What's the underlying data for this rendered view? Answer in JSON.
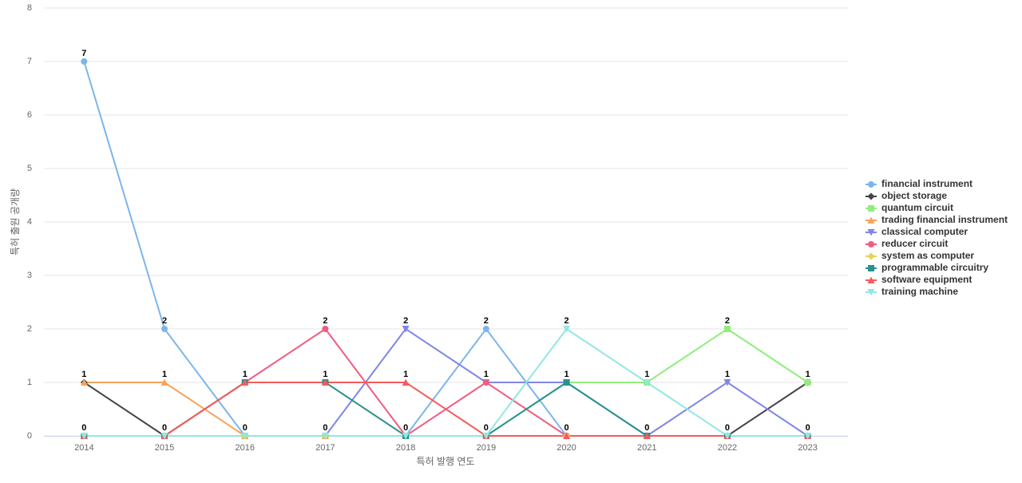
{
  "chart_data": {
    "type": "line",
    "x_label": "특허 발행 연도",
    "y_label": "특허 출원 공개량",
    "categories": [
      "2014",
      "2015",
      "2016",
      "2017",
      "2018",
      "2019",
      "2020",
      "2021",
      "2022",
      "2023"
    ],
    "ylim": [
      0,
      8
    ],
    "yticks": [
      0,
      1,
      2,
      3,
      4,
      5,
      6,
      7,
      8
    ],
    "grid": true,
    "legend": "right",
    "series": [
      {
        "name": "financial instrument",
        "color": "#7cb5ec",
        "marker": "circle",
        "values": [
          7,
          2,
          0,
          0,
          0,
          2,
          0,
          0,
          0,
          0
        ]
      },
      {
        "name": "object storage",
        "color": "#434348",
        "marker": "diamond",
        "values": [
          1,
          0,
          0,
          0,
          0,
          0,
          0,
          0,
          0,
          1
        ]
      },
      {
        "name": "quantum circuit",
        "color": "#90ed7d",
        "marker": "square",
        "values": [
          0,
          0,
          0,
          0,
          0,
          0,
          1,
          1,
          2,
          1
        ]
      },
      {
        "name": "trading financial instrument",
        "color": "#f7a35c",
        "marker": "triangle",
        "values": [
          1,
          1,
          0,
          0,
          0,
          0,
          0,
          0,
          0,
          0
        ]
      },
      {
        "name": "classical computer",
        "color": "#8085e9",
        "marker": "triangle-down",
        "values": [
          0,
          0,
          0,
          0,
          2,
          1,
          1,
          0,
          1,
          0
        ]
      },
      {
        "name": "reducer circuit",
        "color": "#f15c80",
        "marker": "circle",
        "values": [
          0,
          0,
          1,
          2,
          0,
          1,
          0,
          0,
          0,
          0
        ]
      },
      {
        "name": "system as computer",
        "color": "#e4d354",
        "marker": "diamond",
        "values": [
          0,
          0,
          0,
          0,
          0,
          0,
          0,
          0,
          0,
          0
        ]
      },
      {
        "name": "programmable circuitry",
        "color": "#2b908f",
        "marker": "square",
        "values": [
          0,
          0,
          1,
          1,
          0,
          0,
          1,
          0,
          0,
          0
        ]
      },
      {
        "name": "software equipment",
        "color": "#f45b5b",
        "marker": "triangle",
        "values": [
          0,
          0,
          1,
          1,
          1,
          0,
          0,
          0,
          0,
          0
        ]
      },
      {
        "name": "training machine",
        "color": "#91e8e1",
        "marker": "triangle-down",
        "values": [
          0,
          0,
          0,
          0,
          0,
          0,
          2,
          1,
          0,
          0
        ]
      }
    ]
  }
}
